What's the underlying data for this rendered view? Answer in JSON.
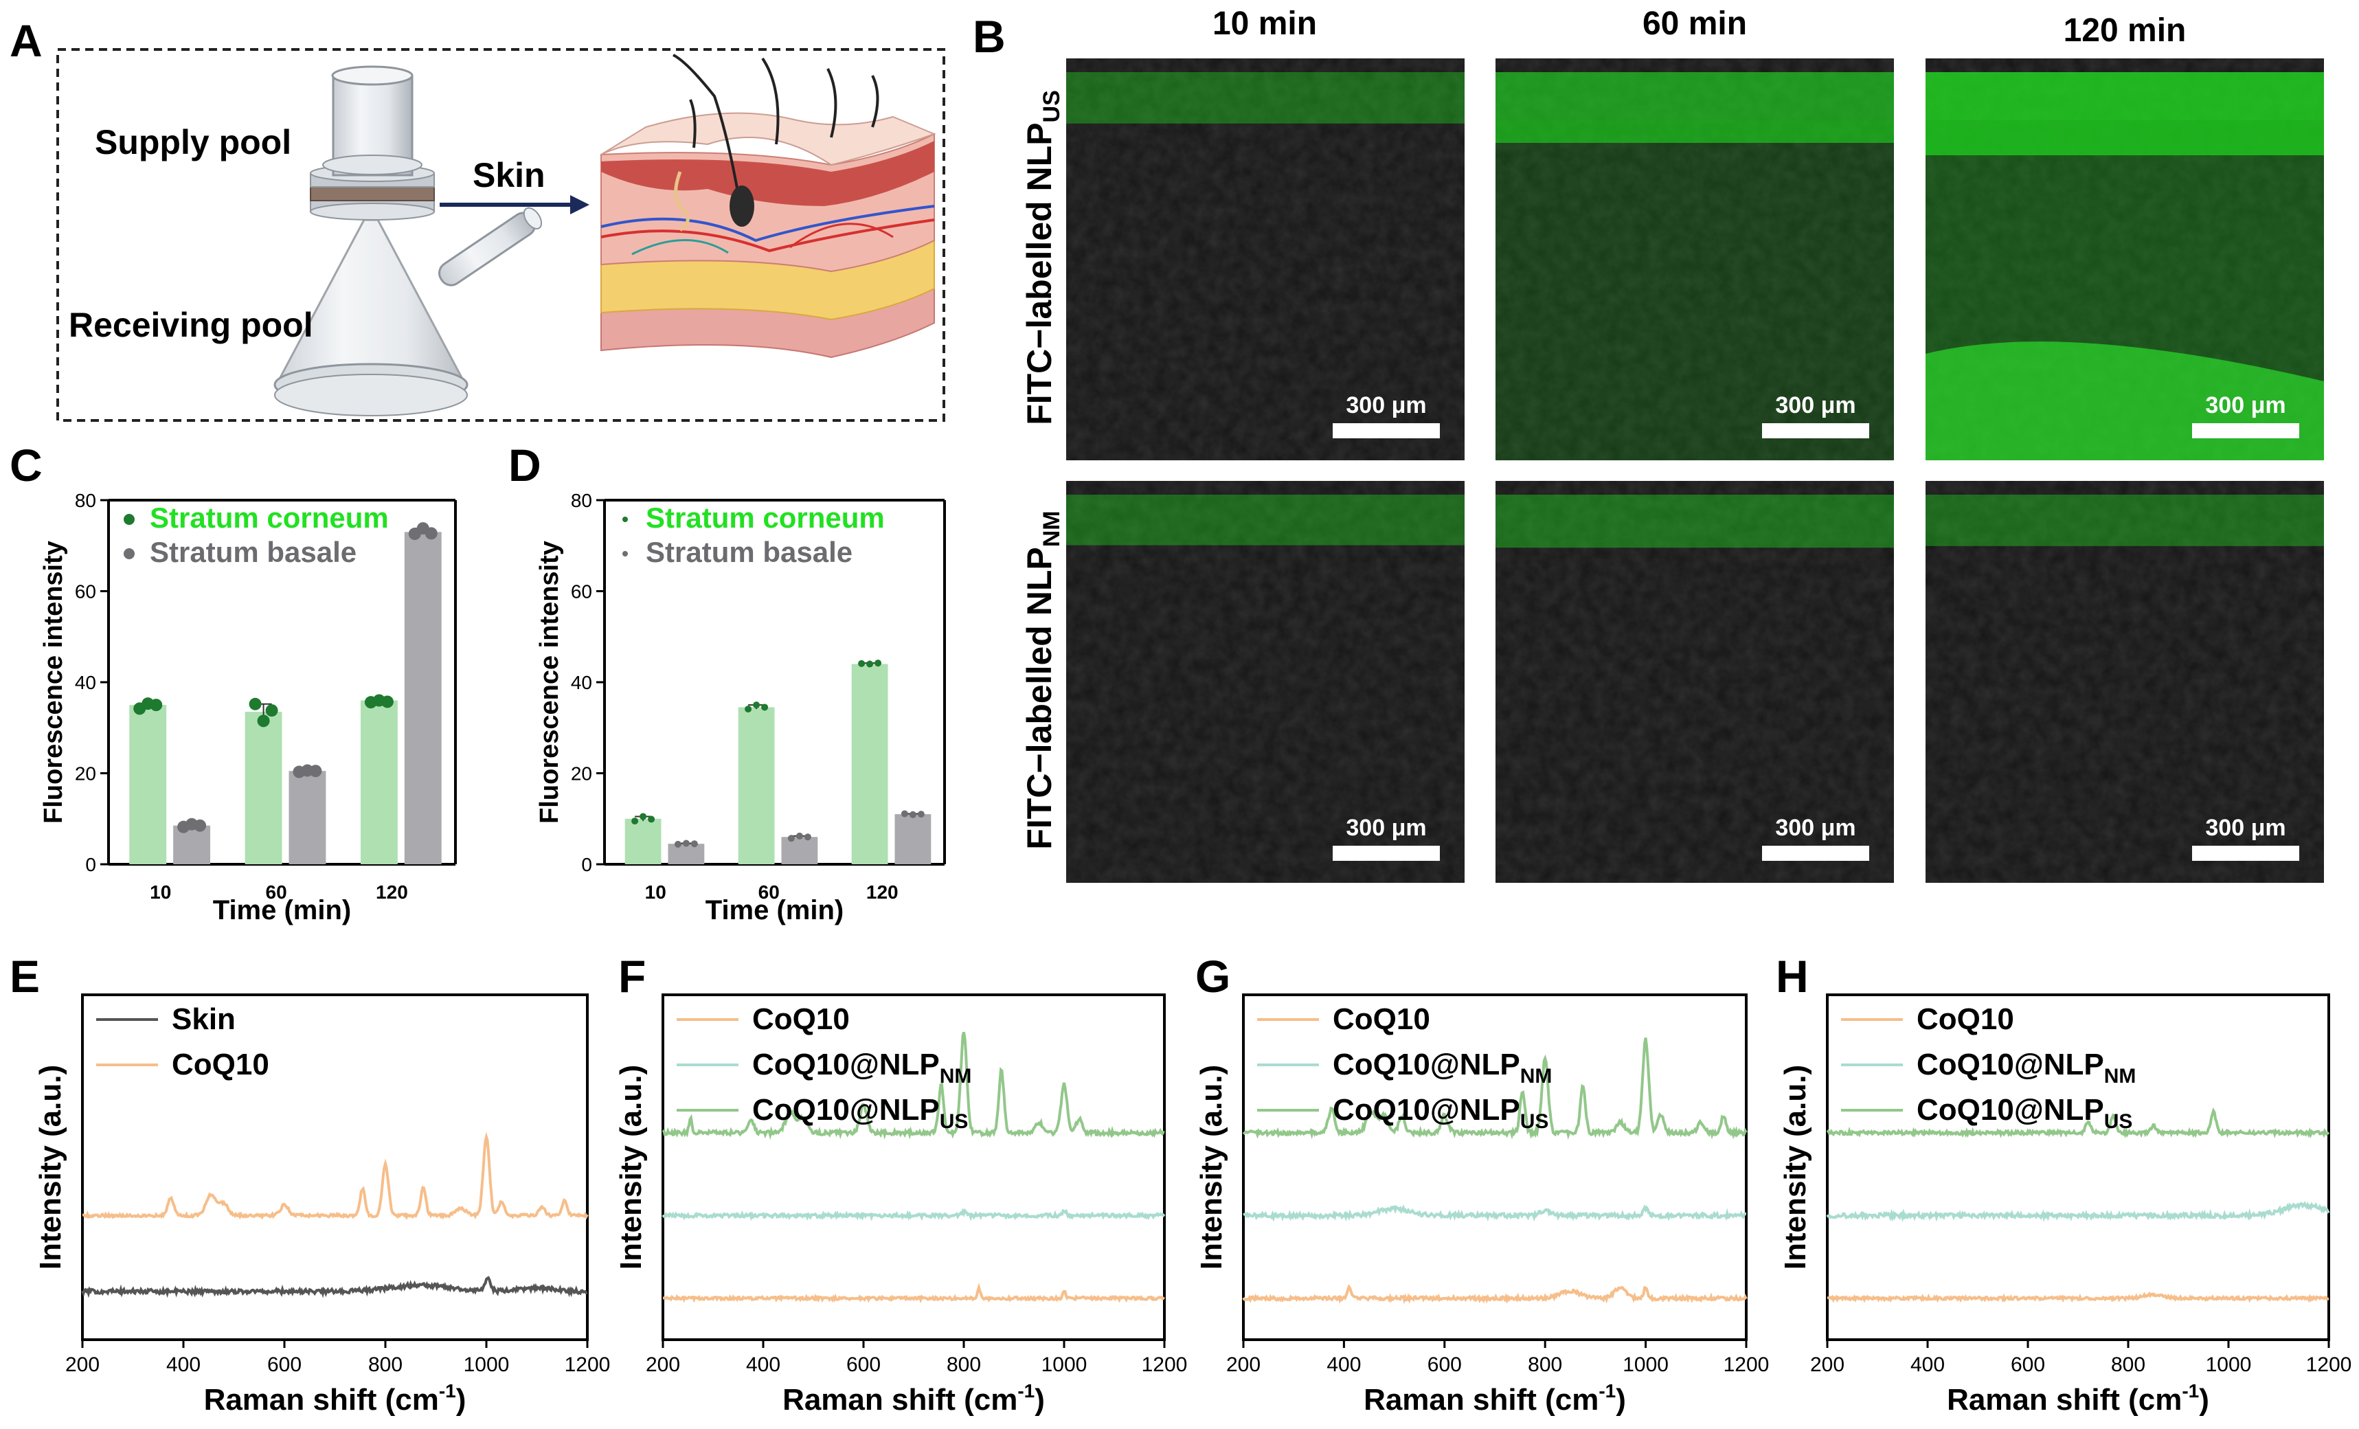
{
  "panels": {
    "A": {
      "letter": "A",
      "supply_pool": "Supply pool",
      "receiving_pool": "Receiving pool",
      "skin": "Skin"
    },
    "B": {
      "letter": "B",
      "times": [
        "10 min",
        "60 min",
        "120 min"
      ],
      "row1_label_main": "FITC−labelled NLP",
      "row1_label_sub": "US",
      "row2_label_main": "FITC−labelled NLP",
      "row2_label_sub": "NM",
      "scale_bar": "300 μm",
      "green_levels": [
        [
          0.08,
          0.55,
          0.85
        ],
        [
          0.06,
          0.12,
          0.08
        ]
      ]
    },
    "C": {
      "letter": "C"
    },
    "D": {
      "letter": "D"
    },
    "E": {
      "letter": "E"
    },
    "F": {
      "letter": "F"
    },
    "G": {
      "letter": "G"
    },
    "H": {
      "letter": "H"
    }
  },
  "colors": {
    "corneum_bar": "#aee0b2",
    "corneum_dot": "#1e7a2e",
    "corneum_text": "#22e022",
    "basale_bar": "#a9a9ae",
    "basale_dot": "#6e6e73",
    "basale_text": "#6b6b70",
    "skin_line": "#555555",
    "coq10_line": "#f6be8a",
    "nm_line": "#a9dccf",
    "us_line": "#92c78a"
  },
  "chart_data": [
    {
      "id": "C",
      "type": "bar",
      "categories": [
        "10",
        "60",
        "120"
      ],
      "series": [
        {
          "name": "Stratum corneum",
          "values": [
            35,
            33.5,
            36
          ],
          "points": [
            [
              34.2,
              35.3,
              35.0
            ],
            [
              35.2,
              31.5,
              33.8
            ],
            [
              35.6,
              36.0,
              35.7
            ]
          ]
        },
        {
          "name": "Stratum basale",
          "values": [
            8.5,
            20.5,
            73
          ],
          "points": [
            [
              8.2,
              8.8,
              8.5
            ],
            [
              20.3,
              20.6,
              20.5
            ],
            [
              72.6,
              73.8,
              72.7
            ]
          ]
        }
      ],
      "xlabel": "Time (min)",
      "ylabel": "Fluorescence intensity",
      "ylim": [
        0,
        80
      ],
      "yticks": [
        "0",
        "20",
        "40",
        "60",
        "80"
      ],
      "legend_position": "top"
    },
    {
      "id": "D",
      "type": "bar",
      "categories": [
        "10",
        "60",
        "120"
      ],
      "series": [
        {
          "name": "Stratum corneum",
          "values": [
            10,
            34.5,
            44
          ],
          "points": [
            [
              9.5,
              10.5,
              9.9
            ],
            [
              34.1,
              35.0,
              34.5
            ],
            [
              44.1,
              44.0,
              44.2
            ]
          ]
        },
        {
          "name": "Stratum basale",
          "values": [
            4.5,
            6,
            11
          ],
          "points": [
            [
              4.4,
              4.6,
              4.5
            ],
            [
              5.7,
              6.2,
              6.0
            ],
            [
              11.1,
              10.9,
              11.0
            ]
          ]
        }
      ],
      "xlabel": "Time (min)",
      "ylabel": "Fluorescence intensity",
      "ylim": [
        0,
        80
      ],
      "yticks": [
        "0",
        "20",
        "40",
        "60",
        "80"
      ],
      "legend_position": "top"
    },
    {
      "id": "E",
      "type": "line",
      "xlim": [
        200,
        1200
      ],
      "xticks": [
        "200",
        "400",
        "600",
        "800",
        "1000",
        "1200"
      ],
      "xlabel": "Raman shift (cm",
      "xlabel_sup": "-1",
      "xlabel_end": ")",
      "ylabel": "Intensity (a.u.)",
      "legend": [
        {
          "main": "Skin",
          "sub": ""
        },
        {
          "main": "CoQ10",
          "sub": ""
        }
      ],
      "series": [
        {
          "name": "Skin",
          "color_key": "skin_line",
          "baseline": 0.14,
          "noise": 0.006,
          "peaks": [
            [
              870,
              0.018,
              60
            ],
            [
              1003,
              0.04,
              5
            ],
            [
              1100,
              0.01,
              30
            ]
          ]
        },
        {
          "name": "CoQ10",
          "color_key": "coq10_line",
          "baseline": 0.36,
          "noise": 0.004,
          "peaks": [
            [
              375,
              0.05,
              6
            ],
            [
              455,
              0.06,
              10
            ],
            [
              480,
              0.035,
              8
            ],
            [
              600,
              0.03,
              8
            ],
            [
              755,
              0.08,
              5
            ],
            [
              800,
              0.15,
              6
            ],
            [
              875,
              0.085,
              5
            ],
            [
              950,
              0.02,
              10
            ],
            [
              1000,
              0.23,
              6
            ],
            [
              1030,
              0.04,
              6
            ],
            [
              1110,
              0.025,
              6
            ],
            [
              1155,
              0.045,
              5
            ]
          ]
        }
      ]
    },
    {
      "id": "F",
      "type": "line",
      "xlim": [
        200,
        1200
      ],
      "xticks": [
        "200",
        "400",
        "600",
        "800",
        "1000",
        "1200"
      ],
      "xlabel": "Raman shift (cm",
      "xlabel_sup": "-1",
      "xlabel_end": ")",
      "ylabel": "Intensity (a.u.)",
      "legend": [
        {
          "main": "CoQ10",
          "sub": ""
        },
        {
          "main": "CoQ10@NLP",
          "sub": "NM"
        },
        {
          "main": "CoQ10@NLP",
          "sub": "US"
        }
      ],
      "series": [
        {
          "name": "CoQ10",
          "color_key": "coq10_line",
          "baseline": 0.12,
          "noise": 0.004,
          "peaks": [
            [
              830,
              0.03,
              3
            ],
            [
              1000,
              0.02,
              3
            ]
          ]
        },
        {
          "name": "CoQ10@NLP NM",
          "color_key": "nm_line",
          "baseline": 0.36,
          "noise": 0.005,
          "peaks": [
            [
              800,
              0.01,
              5
            ],
            [
              1000,
              0.015,
              4
            ]
          ]
        },
        {
          "name": "CoQ10@NLP US",
          "color_key": "us_line",
          "baseline": 0.6,
          "noise": 0.006,
          "peaks": [
            [
              255,
              0.04,
              3
            ],
            [
              375,
              0.04,
              6
            ],
            [
              455,
              0.06,
              10
            ],
            [
              480,
              0.04,
              8
            ],
            [
              600,
              0.08,
              7
            ],
            [
              755,
              0.14,
              5
            ],
            [
              800,
              0.29,
              6
            ],
            [
              875,
              0.18,
              5
            ],
            [
              950,
              0.03,
              8
            ],
            [
              1000,
              0.14,
              6
            ],
            [
              1030,
              0.04,
              6
            ]
          ]
        }
      ]
    },
    {
      "id": "G",
      "type": "line",
      "xlim": [
        200,
        1200
      ],
      "xticks": [
        "200",
        "400",
        "600",
        "800",
        "1000",
        "1200"
      ],
      "xlabel": "Raman shift (cm",
      "xlabel_sup": "-1",
      "xlabel_end": ")",
      "ylabel": "Intensity (a.u.)",
      "legend": [
        {
          "main": "CoQ10",
          "sub": ""
        },
        {
          "main": "CoQ10@NLP",
          "sub": "NM"
        },
        {
          "main": "CoQ10@NLP",
          "sub": "US"
        }
      ],
      "series": [
        {
          "name": "CoQ10",
          "color_key": "coq10_line",
          "baseline": 0.12,
          "noise": 0.005,
          "peaks": [
            [
              410,
              0.03,
              4
            ],
            [
              850,
              0.02,
              20
            ],
            [
              950,
              0.03,
              12
            ],
            [
              1000,
              0.03,
              4
            ]
          ]
        },
        {
          "name": "CoQ10@NLP NM",
          "color_key": "nm_line",
          "baseline": 0.36,
          "noise": 0.006,
          "peaks": [
            [
              500,
              0.02,
              30
            ],
            [
              800,
              0.015,
              10
            ],
            [
              1000,
              0.02,
              5
            ]
          ]
        },
        {
          "name": "CoQ10@NLP US",
          "color_key": "us_line",
          "baseline": 0.6,
          "noise": 0.006,
          "peaks": [
            [
              375,
              0.07,
              6
            ],
            [
              455,
              0.06,
              10
            ],
            [
              480,
              0.05,
              8
            ],
            [
              515,
              0.05,
              6
            ],
            [
              600,
              0.05,
              7
            ],
            [
              755,
              0.12,
              5
            ],
            [
              800,
              0.22,
              6
            ],
            [
              875,
              0.14,
              5
            ],
            [
              950,
              0.03,
              8
            ],
            [
              1000,
              0.27,
              6
            ],
            [
              1030,
              0.05,
              6
            ],
            [
              1110,
              0.03,
              6
            ],
            [
              1155,
              0.05,
              5
            ]
          ]
        }
      ]
    },
    {
      "id": "H",
      "type": "line",
      "xlim": [
        200,
        1200
      ],
      "xticks": [
        "200",
        "400",
        "600",
        "800",
        "1000",
        "1200"
      ],
      "xlabel": "Raman shift (cm",
      "xlabel_sup": "-1",
      "xlabel_end": ")",
      "ylabel": "Intensity (a.u.)",
      "legend": [
        {
          "main": "CoQ10",
          "sub": ""
        },
        {
          "main": "CoQ10@NLP",
          "sub": "NM"
        },
        {
          "main": "CoQ10@NLP",
          "sub": "US"
        }
      ],
      "series": [
        {
          "name": "CoQ10",
          "color_key": "coq10_line",
          "baseline": 0.12,
          "noise": 0.004,
          "peaks": [
            [
              850,
              0.01,
              20
            ]
          ]
        },
        {
          "name": "CoQ10@NLP NM",
          "color_key": "nm_line",
          "baseline": 0.36,
          "noise": 0.006,
          "peaks": [
            [
              1150,
              0.03,
              40
            ]
          ]
        },
        {
          "name": "CoQ10@NLP US",
          "color_key": "us_line",
          "baseline": 0.6,
          "noise": 0.005,
          "peaks": [
            [
              720,
              0.03,
              5
            ],
            [
              770,
              0.05,
              5
            ],
            [
              850,
              0.02,
              5
            ],
            [
              970,
              0.06,
              5
            ]
          ]
        }
      ]
    }
  ]
}
